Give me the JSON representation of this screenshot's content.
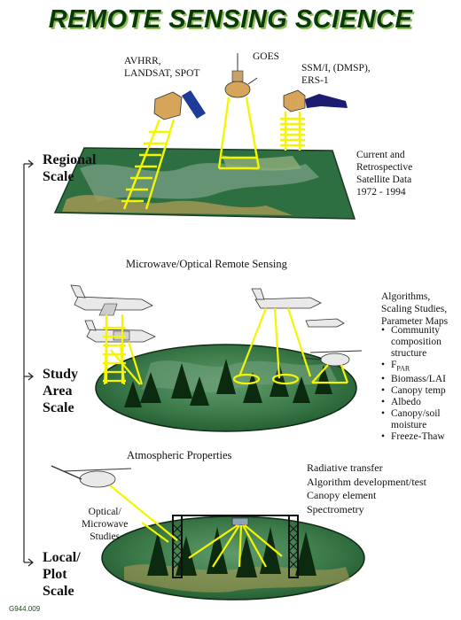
{
  "title": "REMOTE SENSING SCIENCE",
  "satellites": {
    "avhrr": "AVHRR,\nLANDSAT, SPOT",
    "goes": "GOES",
    "ssmi": "SSM/I, (DMSP),\nERS-1"
  },
  "scales": {
    "regional": "Regional\nScale",
    "study": "Study\nArea\nScale",
    "local": "Local/\nPlot\nScale"
  },
  "regional_note": "Current and\nRetrospective\nSatellite Data\n1972 - 1994",
  "microwave_heading": "Microwave/Optical Remote Sensing",
  "algorithms_heading": "Algorithms,\nScaling Studies,\nParameter Maps",
  "algorithms_list": [
    "Community composition structure",
    "F",
    "Biomass/LAI",
    "Canopy temp",
    "Albedo",
    "Canopy/soil moisture",
    "Freeze-Thaw"
  ],
  "fpar_sub": "PAR",
  "atmospheric": "Atmospheric Properties",
  "optical_label": "Optical/\nMicrowave\nStudies",
  "local_list": "Radiative transfer\nAlgorithm development/test\nCanopy element\nSpectrometry",
  "figure_code": "G944.009",
  "colors": {
    "title": "#0a3a0a",
    "title_shadow": "#8fbf56",
    "beam": "#f5f500",
    "forest": "#2f6f3a",
    "tree": "#0c2a10"
  }
}
